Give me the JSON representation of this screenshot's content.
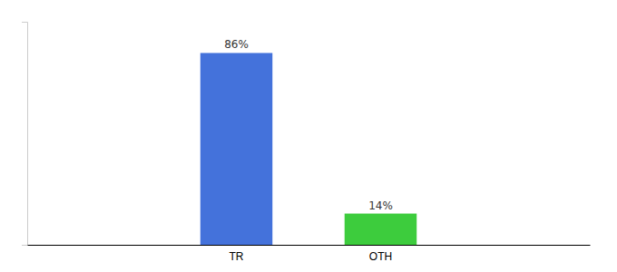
{
  "chart_data": {
    "type": "bar",
    "categories": [
      "TR",
      "OTH"
    ],
    "values": [
      86,
      14
    ],
    "value_labels": [
      "86%",
      "14%"
    ],
    "colors": [
      "#4472db",
      "#3dcc3d"
    ],
    "ylim": [
      0,
      100
    ],
    "data_labels": true,
    "tick_labels": "x",
    "grid": false
  }
}
